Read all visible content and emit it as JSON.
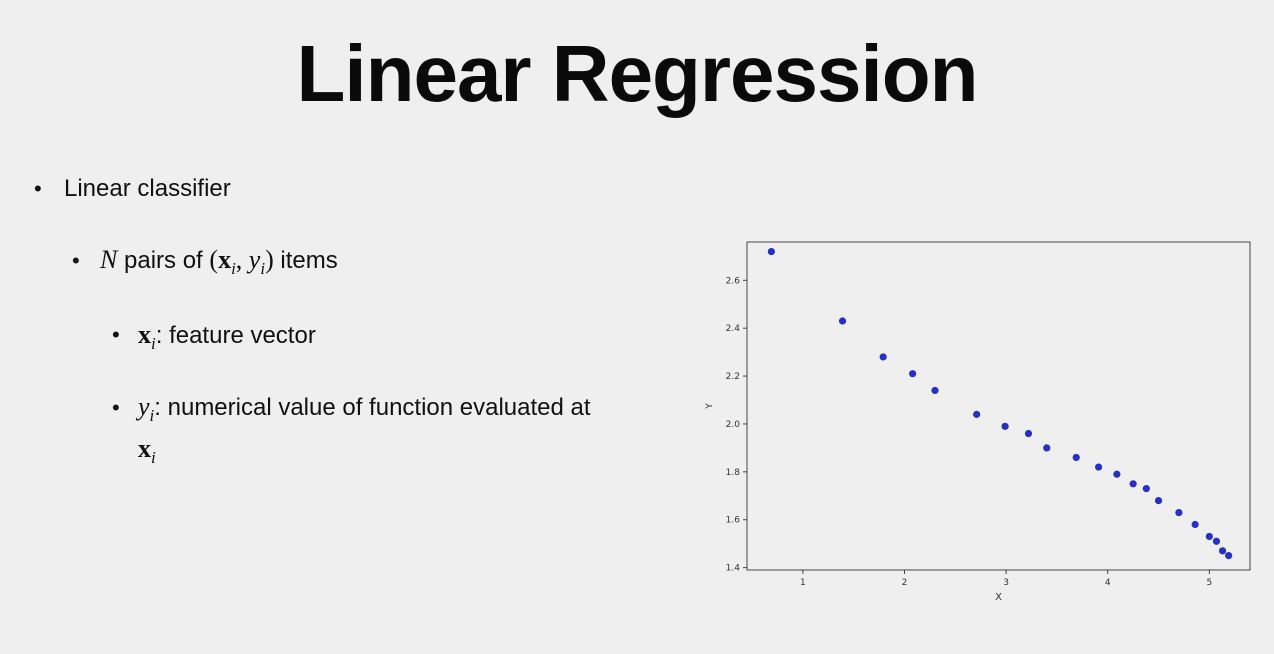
{
  "slide": {
    "title": "Linear Regression",
    "bullet1": "Linear classifier",
    "bullet2": {
      "var_n": "N",
      "text_pairs": " pairs of ",
      "paren_open": "(",
      "x": "x",
      "sub_i": "i",
      "comma": ", ",
      "y": "y",
      "paren_close": ")",
      "text_items": " items"
    },
    "bullet3": {
      "x": "x",
      "sub_i": "i",
      "text": ": feature vector"
    },
    "bullet4": {
      "y": "y",
      "sub_i": "i",
      "text": ": numerical value of function evaluated at",
      "x": "x"
    }
  },
  "chart_data": {
    "type": "scatter",
    "xlabel": "X",
    "ylabel": "Y",
    "xlim": [
      0.45,
      5.4
    ],
    "ylim": [
      1.39,
      2.76
    ],
    "xticks": [
      1,
      2,
      3,
      4,
      5
    ],
    "yticks": [
      1.4,
      1.6,
      1.8,
      2.0,
      2.2,
      2.4,
      2.6
    ],
    "ytick_labels": [
      "1.4",
      "1.6",
      "1.8",
      "2.0",
      "2.2",
      "2.4",
      "2.6"
    ],
    "grid": false,
    "point_color": "#2430c8",
    "x": [
      0.69,
      1.39,
      1.79,
      2.08,
      2.3,
      2.71,
      2.99,
      3.22,
      3.4,
      3.69,
      3.91,
      4.09,
      4.25,
      4.38,
      4.5,
      4.7,
      4.86,
      5.0,
      5.07,
      5.13,
      5.19
    ],
    "y": [
      2.72,
      2.43,
      2.28,
      2.21,
      2.14,
      2.04,
      1.99,
      1.96,
      1.9,
      1.86,
      1.82,
      1.79,
      1.75,
      1.73,
      1.68,
      1.63,
      1.58,
      1.53,
      1.51,
      1.47,
      1.45
    ]
  }
}
